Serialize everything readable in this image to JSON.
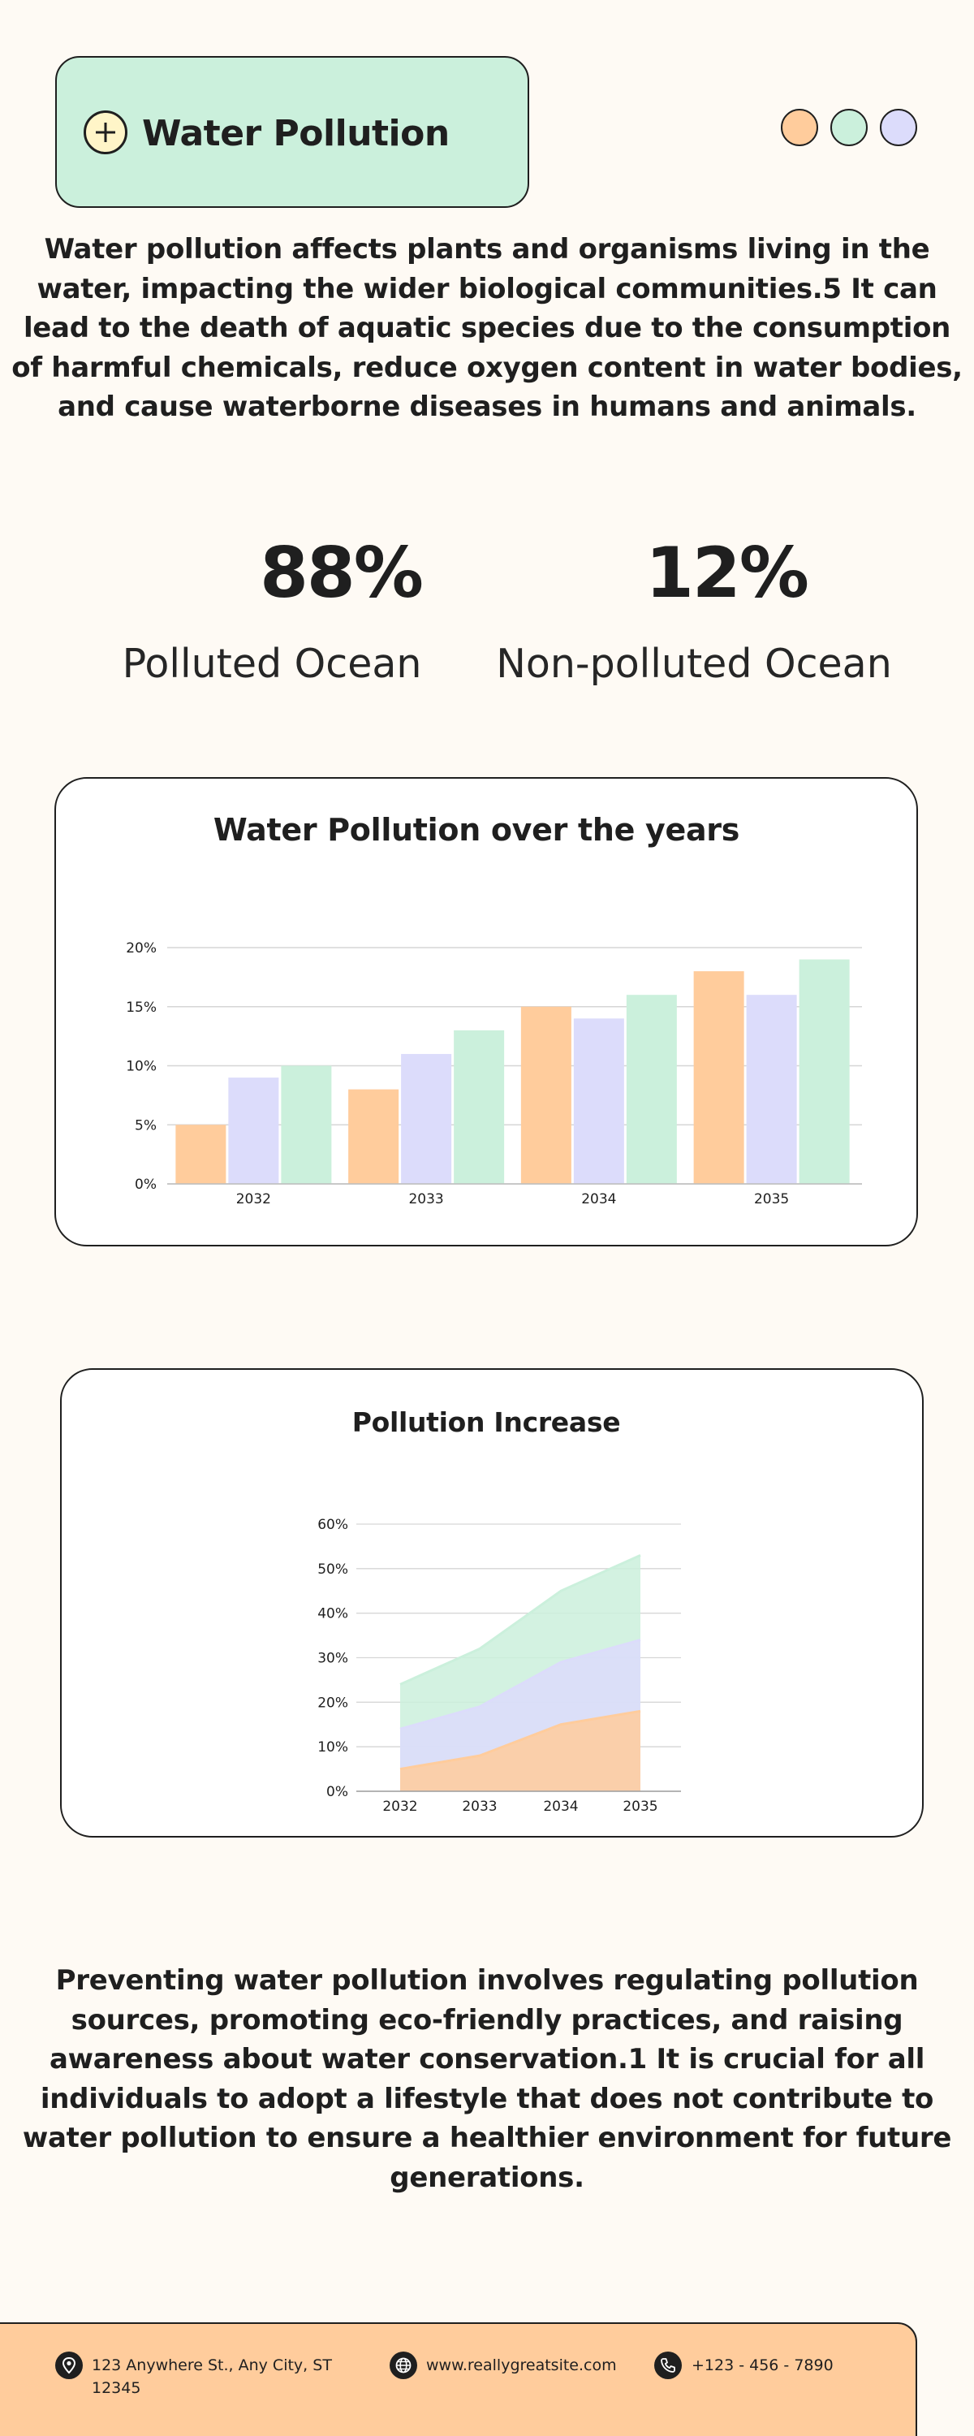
{
  "header": {
    "title": "Water Pollution",
    "dots": [
      {
        "name": "dot-peach",
        "color": "#ffcc9c"
      },
      {
        "name": "dot-mint",
        "color": "#cbf0dc"
      },
      {
        "name": "dot-lavender",
        "color": "#dcdcfb"
      }
    ]
  },
  "intro": "Water pollution affects plants and organisms living in the water, impacting the wider biological communities.5 It can lead to the death of aquatic species due to the consumption of harmful chemicals, reduce oxygen content in water bodies, and cause waterborne diseases in humans and animals.",
  "stats": [
    {
      "value": "88%",
      "label": "Polluted Ocean"
    },
    {
      "value": "12%",
      "label": "Non-polluted Ocean"
    }
  ],
  "colors": {
    "peach": "#ffcc9c",
    "lavender": "#dcdcfb",
    "mint": "#cbf0dc",
    "dark": "#1f1f1f"
  },
  "chart_data": [
    {
      "type": "bar",
      "title": "Water Pollution over the years",
      "categories": [
        "2032",
        "2033",
        "2034",
        "2035"
      ],
      "series": [
        {
          "values": [
            5,
            8,
            15,
            18
          ],
          "color": "#ffcc9c"
        },
        {
          "values": [
            9,
            11,
            14,
            16
          ],
          "color": "#dcdcfb"
        },
        {
          "values": [
            10,
            13,
            16,
            19
          ],
          "color": "#cbf0dc"
        }
      ],
      "ylim": [
        0,
        20
      ],
      "yticks": [
        "0%",
        "5%",
        "10%",
        "15%",
        "20%"
      ],
      "grid": true
    },
    {
      "type": "area",
      "title": "Pollution Increase",
      "categories": [
        "2032",
        "2033",
        "2034",
        "2035"
      ],
      "series": [
        {
          "values": [
            5,
            8,
            15,
            18
          ],
          "color": "#ffcc9c"
        },
        {
          "values": [
            14,
            19,
            29,
            34
          ],
          "color": "#dcdcfb"
        },
        {
          "values": [
            24,
            32,
            45,
            53
          ],
          "color": "#cbf0dc"
        }
      ],
      "ylim": [
        0,
        60
      ],
      "yticks": [
        "0%",
        "10%",
        "20%",
        "30%",
        "40%",
        "50%",
        "60%"
      ],
      "grid": true
    }
  ],
  "outro": "Preventing water pollution involves regulating pollution sources, promoting eco-friendly practices, and raising awareness about water conservation.1 It is crucial for all individuals to adopt a lifestyle that does not contribute to water pollution to ensure a healthier environment for future generations.",
  "footer": {
    "address": "123 Anywhere St., Any City, ST 12345",
    "website": "www.reallygreatsite.com",
    "phone": "+123 - 456 - 7890",
    "icons": [
      "location-pin-icon",
      "globe-icon",
      "phone-icon"
    ]
  }
}
